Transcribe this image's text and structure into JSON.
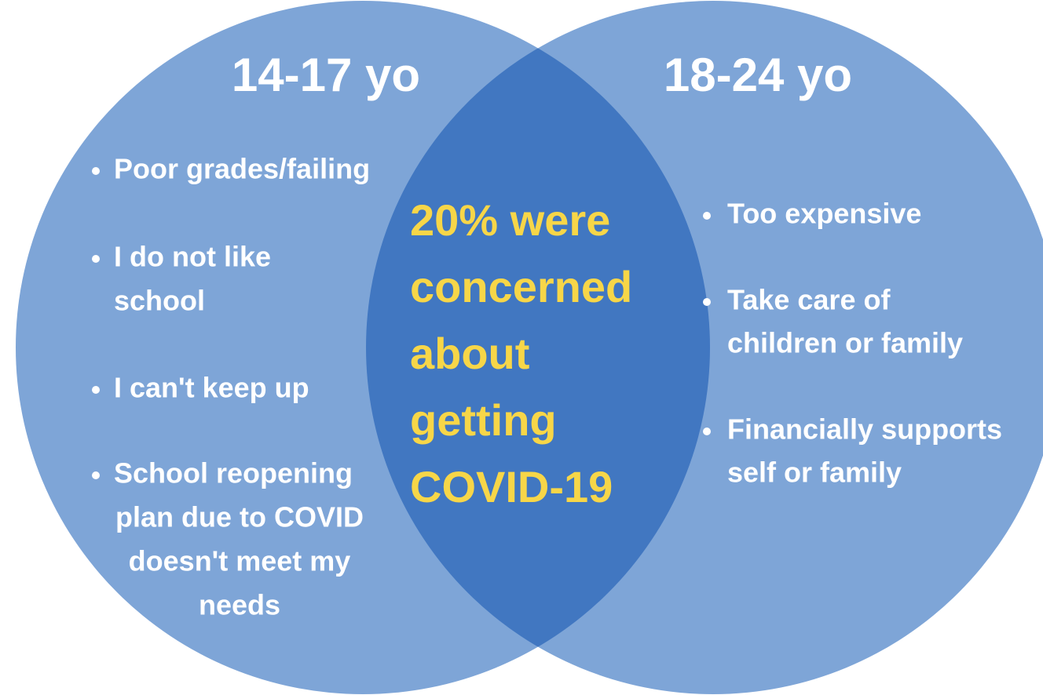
{
  "left": {
    "title": "14-17 yo",
    "items": [
      [
        "Poor grades/failing"
      ],
      [
        "I do not like",
        "school"
      ],
      [
        "I can't keep up"
      ],
      [
        "School reopening",
        "plan due to COVID",
        "doesn't meet my",
        "needs"
      ]
    ]
  },
  "right": {
    "title": "18-24 yo",
    "items": [
      [
        "Too expensive"
      ],
      [
        "Take care of",
        "children or family"
      ],
      [
        "Financially supports",
        "self or family"
      ]
    ]
  },
  "center": {
    "lines": [
      "20% were",
      "concerned",
      "about",
      "getting",
      "COVID-19"
    ]
  }
}
